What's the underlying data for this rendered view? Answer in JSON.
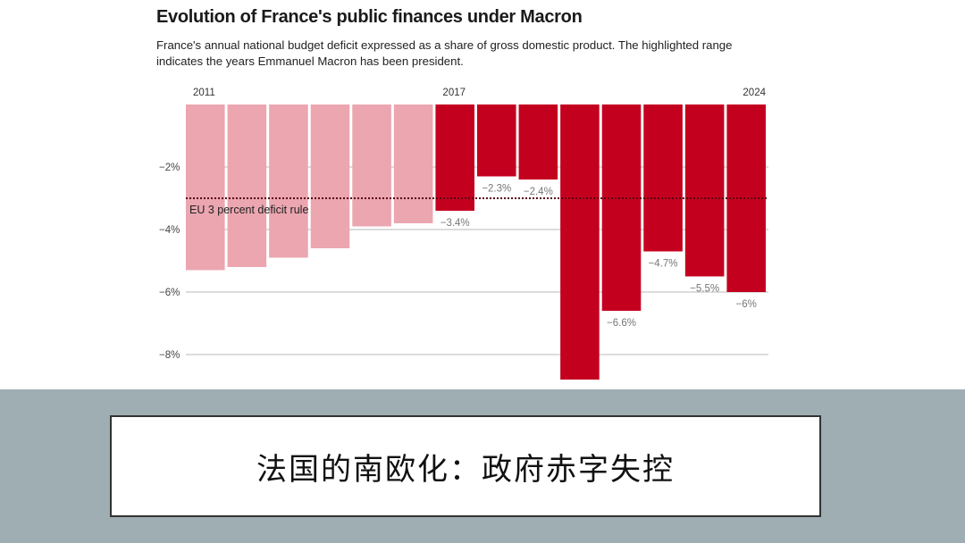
{
  "chart_data": {
    "type": "bar",
    "title": "Evolution of France's public finances under Macron",
    "subtitle": "France's annual national budget deficit expressed as a share of gross domestic product. The highlighted range indicates the years Emmanuel Macron has been president.",
    "categories": [
      "2011",
      "2012",
      "2013",
      "2014",
      "2015",
      "2016",
      "2017",
      "2018",
      "2019",
      "2020",
      "2021",
      "2022",
      "2023",
      "2024"
    ],
    "values": [
      -5.3,
      -5.2,
      -4.9,
      -4.6,
      -3.9,
      -3.8,
      -3.4,
      -2.3,
      -2.4,
      -8.8,
      -6.6,
      -4.7,
      -5.5,
      -6
    ],
    "data_labels": [
      "",
      "",
      "",
      "",
      "",
      "",
      "−3.4%",
      "−2.3%",
      "−2.4%",
      "",
      "−6.6%",
      "−4.7%",
      "−5.5%",
      "−6%"
    ],
    "highlighted": [
      false,
      false,
      false,
      false,
      false,
      false,
      true,
      true,
      true,
      true,
      true,
      true,
      true,
      true
    ],
    "x_tick_labels": [
      {
        "index": 0,
        "label": "2011"
      },
      {
        "index": 6,
        "label": "2017"
      },
      {
        "index": 13,
        "label": "2024"
      }
    ],
    "y_ticks": [
      {
        "value": -2,
        "label": "−2%"
      },
      {
        "value": -4,
        "label": "−4%"
      },
      {
        "value": -6,
        "label": "−6%"
      },
      {
        "value": -8,
        "label": "−8%"
      }
    ],
    "ylim": [
      -8.8,
      0
    ],
    "reference_line": {
      "value": -3,
      "label": "EU 3 percent deficit rule"
    },
    "colors": {
      "highlight": "#c4001f",
      "normal": "#eba6b0",
      "grid": "#c8c8c8",
      "label": "#777777"
    },
    "xlabel": "",
    "ylabel": "",
    "grid": true
  },
  "caption": "法国的南欧化：政府赤字失控"
}
